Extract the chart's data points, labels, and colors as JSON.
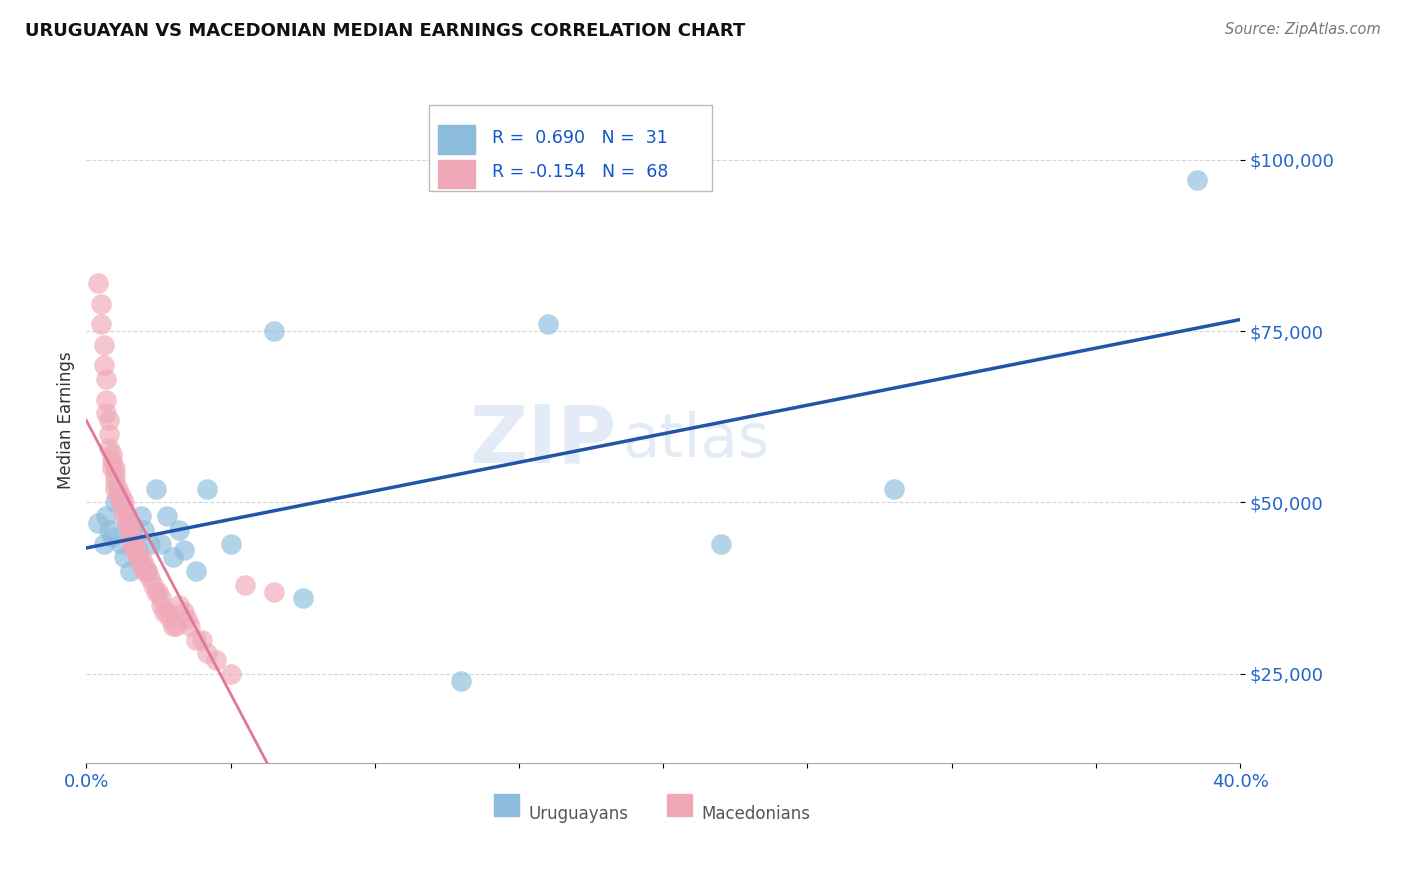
{
  "title": "URUGUAYAN VS MACEDONIAN MEDIAN EARNINGS CORRELATION CHART",
  "source": "Source: ZipAtlas.com",
  "ylabel": "Median Earnings",
  "yticks": [
    25000,
    50000,
    75000,
    100000
  ],
  "ytick_labels": [
    "$25,000",
    "$50,000",
    "$75,000",
    "$100,000"
  ],
  "ylim": [
    12000,
    112000
  ],
  "xlim": [
    0.0,
    0.4
  ],
  "uruguayan_R": 0.69,
  "uruguayan_N": 31,
  "macedonian_R": -0.154,
  "macedonian_N": 68,
  "blue_color": "#8bbcdc",
  "pink_color": "#f0a8b8",
  "blue_line_color": "#2255aa",
  "pink_line_color": "#e07898",
  "pink_dash_color": "#e8a0b8",
  "watermark_ZIP": "ZIP",
  "watermark_atlas": "atlas",
  "uru_x": [
    0.004,
    0.006,
    0.007,
    0.008,
    0.009,
    0.01,
    0.012,
    0.013,
    0.014,
    0.015,
    0.016,
    0.018,
    0.019,
    0.02,
    0.022,
    0.024,
    0.026,
    0.028,
    0.03,
    0.032,
    0.034,
    0.038,
    0.042,
    0.05,
    0.065,
    0.075,
    0.13,
    0.16,
    0.22,
    0.28,
    0.385
  ],
  "uru_y": [
    47000,
    44000,
    48000,
    46000,
    45000,
    50000,
    44000,
    42000,
    47000,
    40000,
    46000,
    43000,
    48000,
    46000,
    44000,
    52000,
    44000,
    48000,
    42000,
    46000,
    43000,
    40000,
    52000,
    44000,
    75000,
    36000,
    24000,
    76000,
    44000,
    52000,
    97000
  ],
  "mac_x": [
    0.004,
    0.005,
    0.005,
    0.006,
    0.006,
    0.007,
    0.007,
    0.007,
    0.008,
    0.008,
    0.008,
    0.009,
    0.009,
    0.009,
    0.01,
    0.01,
    0.01,
    0.01,
    0.011,
    0.011,
    0.012,
    0.012,
    0.012,
    0.013,
    0.013,
    0.013,
    0.014,
    0.014,
    0.015,
    0.015,
    0.015,
    0.015,
    0.016,
    0.016,
    0.016,
    0.017,
    0.017,
    0.017,
    0.018,
    0.018,
    0.019,
    0.019,
    0.02,
    0.02,
    0.021,
    0.021,
    0.022,
    0.023,
    0.024,
    0.025,
    0.026,
    0.026,
    0.027,
    0.028,
    0.029,
    0.03,
    0.031,
    0.032,
    0.034,
    0.035,
    0.036,
    0.038,
    0.04,
    0.042,
    0.045,
    0.05,
    0.055,
    0.065
  ],
  "mac_y": [
    82000,
    79000,
    76000,
    73000,
    70000,
    68000,
    65000,
    63000,
    62000,
    60000,
    58000,
    57000,
    56000,
    55000,
    55000,
    54000,
    53000,
    52000,
    52000,
    51000,
    51000,
    50000,
    50000,
    50000,
    49000,
    48000,
    48000,
    47000,
    47000,
    46000,
    46000,
    45000,
    45000,
    44000,
    44000,
    44000,
    43000,
    43000,
    42000,
    42000,
    42000,
    41000,
    41000,
    40000,
    40000,
    40000,
    39000,
    38000,
    37000,
    37000,
    36000,
    35000,
    34000,
    34000,
    33000,
    32000,
    32000,
    35000,
    34000,
    33000,
    32000,
    30000,
    30000,
    28000,
    27000,
    25000,
    38000,
    37000
  ]
}
